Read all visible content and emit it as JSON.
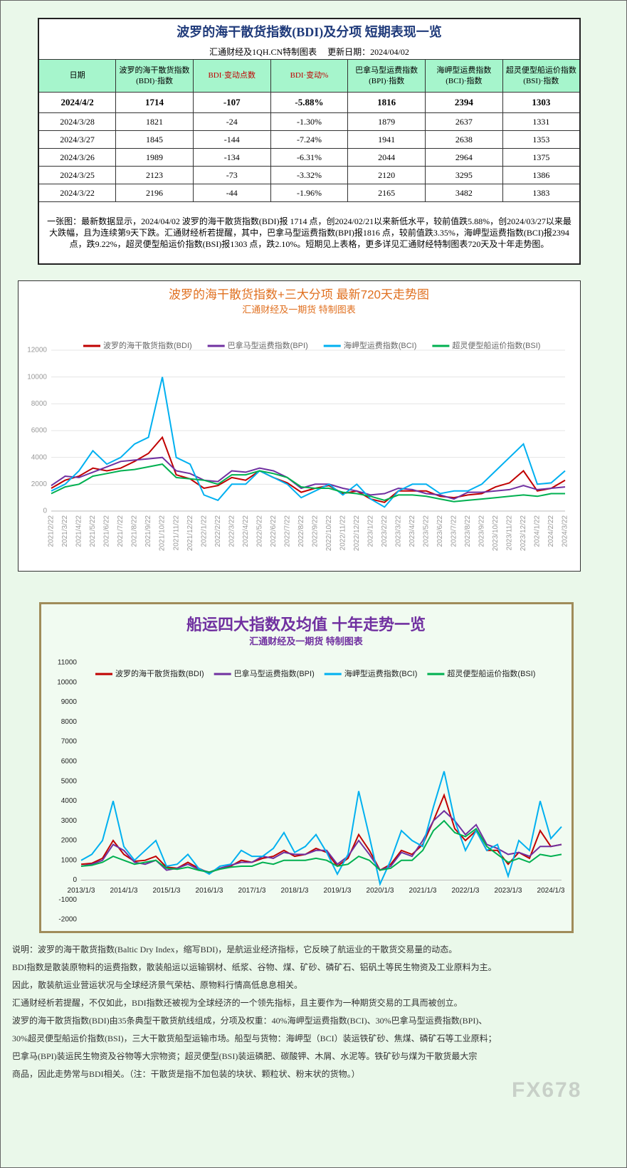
{
  "table": {
    "title": "波罗的海干散货指数(BDI)及分项  短期表现一览",
    "subtitle": "汇通财经及1QH.CN特制图表     更新日期：2024/04/02",
    "header": [
      "日期",
      "波罗的海干散货指数(BDI)·指数",
      "BDI·变动点数",
      "BDI·变动%",
      "巴拿马型运费指数(BPI)·指数",
      "海岬型运费指数(BCI)·指数",
      "超灵便型船运价指数(BSI)·指数"
    ],
    "rows": [
      [
        "2024/4/2",
        1714,
        -107,
        "-5.88%",
        1816,
        2394,
        1303
      ],
      [
        "2024/3/28",
        1821,
        -24,
        "-1.30%",
        1879,
        2637,
        1331
      ],
      [
        "2024/3/27",
        1845,
        -144,
        "-7.24%",
        1941,
        2638,
        1353
      ],
      [
        "2024/3/26",
        1989,
        -134,
        "-6.31%",
        2044,
        2964,
        1375
      ],
      [
        "2024/3/25",
        2123,
        -73,
        "-3.32%",
        2120,
        3295,
        1386
      ],
      [
        "2024/3/22",
        2196,
        -44,
        "-1.96%",
        2165,
        3482,
        1383
      ]
    ],
    "note": "一张图：最新数据显示，2024/04/02 波罗的海干散货指数(BDI)报 1714 点，创2024/02/21以来新低水平，较前值跌5.88%，创2024/03/27以来最大跌幅，且为连续第9天下跌。汇通财经析若提醒，其中，巴拿马型运费指数(BPI)报1816 点，较前值跌3.35%，海岬型运费指数(BCI)报2394 点，跌9.22%，超灵便型船运价指数(BSI)报1303 点，跌2.10%。短期见上表格，更多详见汇通财经特制图表720天及十年走势图。"
  },
  "chart_data": [
    {
      "type": "line",
      "title": "波罗的海干散货指数+三大分项  最新720天走势图",
      "subtitle": "汇通财经及一期货  特制图表",
      "categories": [
        "2021/2/22",
        "2021/3/22",
        "2021/4/22",
        "2021/5/22",
        "2021/6/22",
        "2021/7/22",
        "2021/8/22",
        "2021/9/22",
        "2021/10/22",
        "2021/11/22",
        "2021/12/22",
        "2022/1/22",
        "2022/2/22",
        "2022/3/22",
        "2022/4/22",
        "2022/5/22",
        "2022/6/22",
        "2022/7/22",
        "2022/8/22",
        "2022/9/22",
        "2022/10/22",
        "2022/11/22",
        "2022/12/22",
        "2023/1/22",
        "2023/2/22",
        "2023/3/22",
        "2023/4/22",
        "2023/5/22",
        "2023/6/22",
        "2023/7/22",
        "2023/8/22",
        "2023/9/22",
        "2023/10/22",
        "2023/11/22",
        "2023/12/22",
        "2024/1/22",
        "2024/2/22",
        "2024/3/22"
      ],
      "ylim": [
        0,
        12000
      ],
      "yticks": [
        0,
        2000,
        4000,
        6000,
        8000,
        10000,
        12000
      ],
      "grid": true,
      "series": [
        {
          "name": "波罗的海干散货指数(BDI)",
          "color": "#c00000",
          "values": [
            1700,
            2300,
            2600,
            3200,
            3000,
            3200,
            3700,
            4300,
            5500,
            2700,
            2400,
            1700,
            1900,
            2500,
            2300,
            3000,
            2500,
            2100,
            1400,
            1700,
            1900,
            1300,
            1500,
            900,
            650,
            1500,
            1500,
            1500,
            1100,
            1000,
            1200,
            1300,
            1800,
            2100,
            3000,
            1500,
            1700,
            2300
          ]
        },
        {
          "name": "巴拿马型运费指数(BPI)",
          "color": "#7030a0",
          "values": [
            1900,
            2600,
            2500,
            2900,
            3300,
            3700,
            3800,
            3900,
            4000,
            3000,
            2800,
            2300,
            2200,
            3000,
            2900,
            3200,
            3000,
            2500,
            1700,
            2000,
            2000,
            1700,
            1500,
            1200,
            1300,
            1700,
            1600,
            1300,
            1200,
            900,
            1400,
            1400,
            1500,
            1600,
            1900,
            1600,
            1700,
            1800
          ]
        },
        {
          "name": "海岬型运费指数(BCI)",
          "color": "#00b0f0",
          "values": [
            1500,
            2000,
            3000,
            4500,
            3500,
            4000,
            5000,
            5500,
            10000,
            4000,
            3500,
            1200,
            800,
            2000,
            2000,
            3000,
            2500,
            2000,
            1000,
            1500,
            2000,
            1200,
            2000,
            900,
            300,
            1500,
            2000,
            2000,
            1300,
            1500,
            1500,
            2000,
            3000,
            4000,
            5000,
            2000,
            2100,
            3000
          ]
        },
        {
          "name": "超灵便型船运价指数(BSI)",
          "color": "#00b050",
          "values": [
            1300,
            1800,
            2000,
            2600,
            2800,
            3000,
            3100,
            3300,
            3500,
            2500,
            2400,
            2300,
            2000,
            2700,
            2700,
            3000,
            2800,
            2500,
            1800,
            1700,
            1700,
            1400,
            1300,
            1100,
            800,
            1200,
            1200,
            1100,
            900,
            700,
            800,
            900,
            1000,
            1100,
            1200,
            1100,
            1300,
            1300
          ]
        }
      ]
    },
    {
      "type": "line",
      "title": "船运四大指数及均值 十年走势一览",
      "subtitle": "汇通财经及一期货 特制图表",
      "categories": [
        "2013/1/3",
        null,
        null,
        null,
        "2014/1/3",
        null,
        null,
        null,
        "2015/1/3",
        null,
        null,
        null,
        "2016/1/3",
        null,
        null,
        null,
        "2017/1/3",
        null,
        null,
        null,
        "2018/1/3",
        null,
        null,
        null,
        "2019/1/3",
        null,
        null,
        null,
        "2020/1/3",
        null,
        null,
        null,
        "2021/1/3",
        null,
        null,
        null,
        "2022/1/3",
        null,
        null,
        null,
        "2023/1/3",
        null,
        null,
        null,
        "2024/1/3",
        null
      ],
      "ylim": [
        -2000,
        11000
      ],
      "yticks": [
        -2000,
        -1000,
        0,
        1000,
        2000,
        3000,
        4000,
        5000,
        6000,
        7000,
        8000,
        9000,
        10000,
        11000
      ],
      "grid": false,
      "series": [
        {
          "name": "波罗的海干散货指数(BDI)",
          "color": "#c00000",
          "values": [
            800,
            850,
            1100,
            2000,
            1300,
            950,
            1000,
            1200,
            650,
            600,
            900,
            600,
            350,
            600,
            700,
            1000,
            900,
            1100,
            1200,
            1500,
            1200,
            1300,
            1600,
            1400,
            700,
            1100,
            2300,
            1500,
            500,
            800,
            1500,
            1300,
            1800,
            3000,
            4300,
            2600,
            2000,
            2500,
            1500,
            1500,
            800,
            1400,
            1100,
            2500,
            1700,
            1800
          ]
        },
        {
          "name": "巴拿马型运费指数(BPI)",
          "color": "#7030a0",
          "values": [
            700,
            800,
            1000,
            1800,
            1500,
            900,
            800,
            1000,
            500,
            600,
            800,
            550,
            400,
            600,
            750,
            900,
            900,
            1200,
            1100,
            1400,
            1300,
            1300,
            1500,
            1500,
            800,
            1200,
            2000,
            1300,
            500,
            700,
            1400,
            1200,
            2000,
            3000,
            3500,
            3000,
            2300,
            2800,
            1800,
            1600,
            1300,
            1400,
            1200,
            1700,
            1700,
            1800
          ]
        },
        {
          "name": "海岬型运费指数(BCI)",
          "color": "#00b0f0",
          "values": [
            1000,
            1300,
            2000,
            4000,
            1700,
            1000,
            1500,
            2000,
            700,
            800,
            1300,
            600,
            300,
            700,
            800,
            1500,
            1200,
            1200,
            1600,
            2400,
            1400,
            1700,
            2300,
            1400,
            300,
            1300,
            4500,
            2200,
            -200,
            1000,
            2500,
            2000,
            1700,
            3700,
            5500,
            3000,
            1500,
            2500,
            1500,
            1800,
            200,
            2000,
            1500,
            4000,
            2100,
            2700
          ]
        },
        {
          "name": "超灵便型船运价指数(BSI)",
          "color": "#00b050",
          "values": [
            700,
            750,
            900,
            1200,
            1000,
            800,
            900,
            1000,
            600,
            550,
            650,
            500,
            400,
            550,
            650,
            700,
            700,
            900,
            800,
            1000,
            1000,
            1000,
            1100,
            1000,
            700,
            800,
            1200,
            1000,
            500,
            600,
            1000,
            1000,
            1500,
            2500,
            3000,
            2400,
            2200,
            2600,
            1700,
            1300,
            900,
            1100,
            900,
            1300,
            1200,
            1300
          ]
        }
      ]
    }
  ],
  "description": [
    "说明：波罗的海干散货指数(Baltic Dry Index，缩写BDI)，是航运业经济指标，它反映了航运业的干散货交易量的动态。",
    "BDI指数是散装原物料的运费指数，散装船运以运输钢材、纸浆、谷物、煤、矿砂、磷矿石、铝矾土等民生物资及工业原料为主。",
    "因此，散装航运业营运状况与全球经济景气荣枯、原物料行情高低息息相关。",
    "汇通财经析若提醒，不仅如此，BDI指数还被视为全球经济的一个领先指标，且主要作为一种期货交易的工具而被创立。",
    "波罗的海干散货指数(BDI)由35条典型干散货航线组成，分项及权重：40%海岬型运费指数(BCI)、30%巴拿马型运费指数(BPI)、",
    "30%超灵便型船运价指数(BSI)，三大干散货船型运输市场。船型与货物：海岬型（BCI）装运铁矿砂、焦煤、磷矿石等工业原料；",
    "巴拿马(BPI)装运民生物资及谷物等大宗物资；超灵便型(BSI)装运磷肥、碳酸钾、木屑、水泥等。铁矿砂与煤为干散货最大宗",
    "商品，因此走势常与BDI相关。（注：干散货是指不加包装的块状、颗粒状、粉末状的货物。）"
  ],
  "watermark": "FX678"
}
